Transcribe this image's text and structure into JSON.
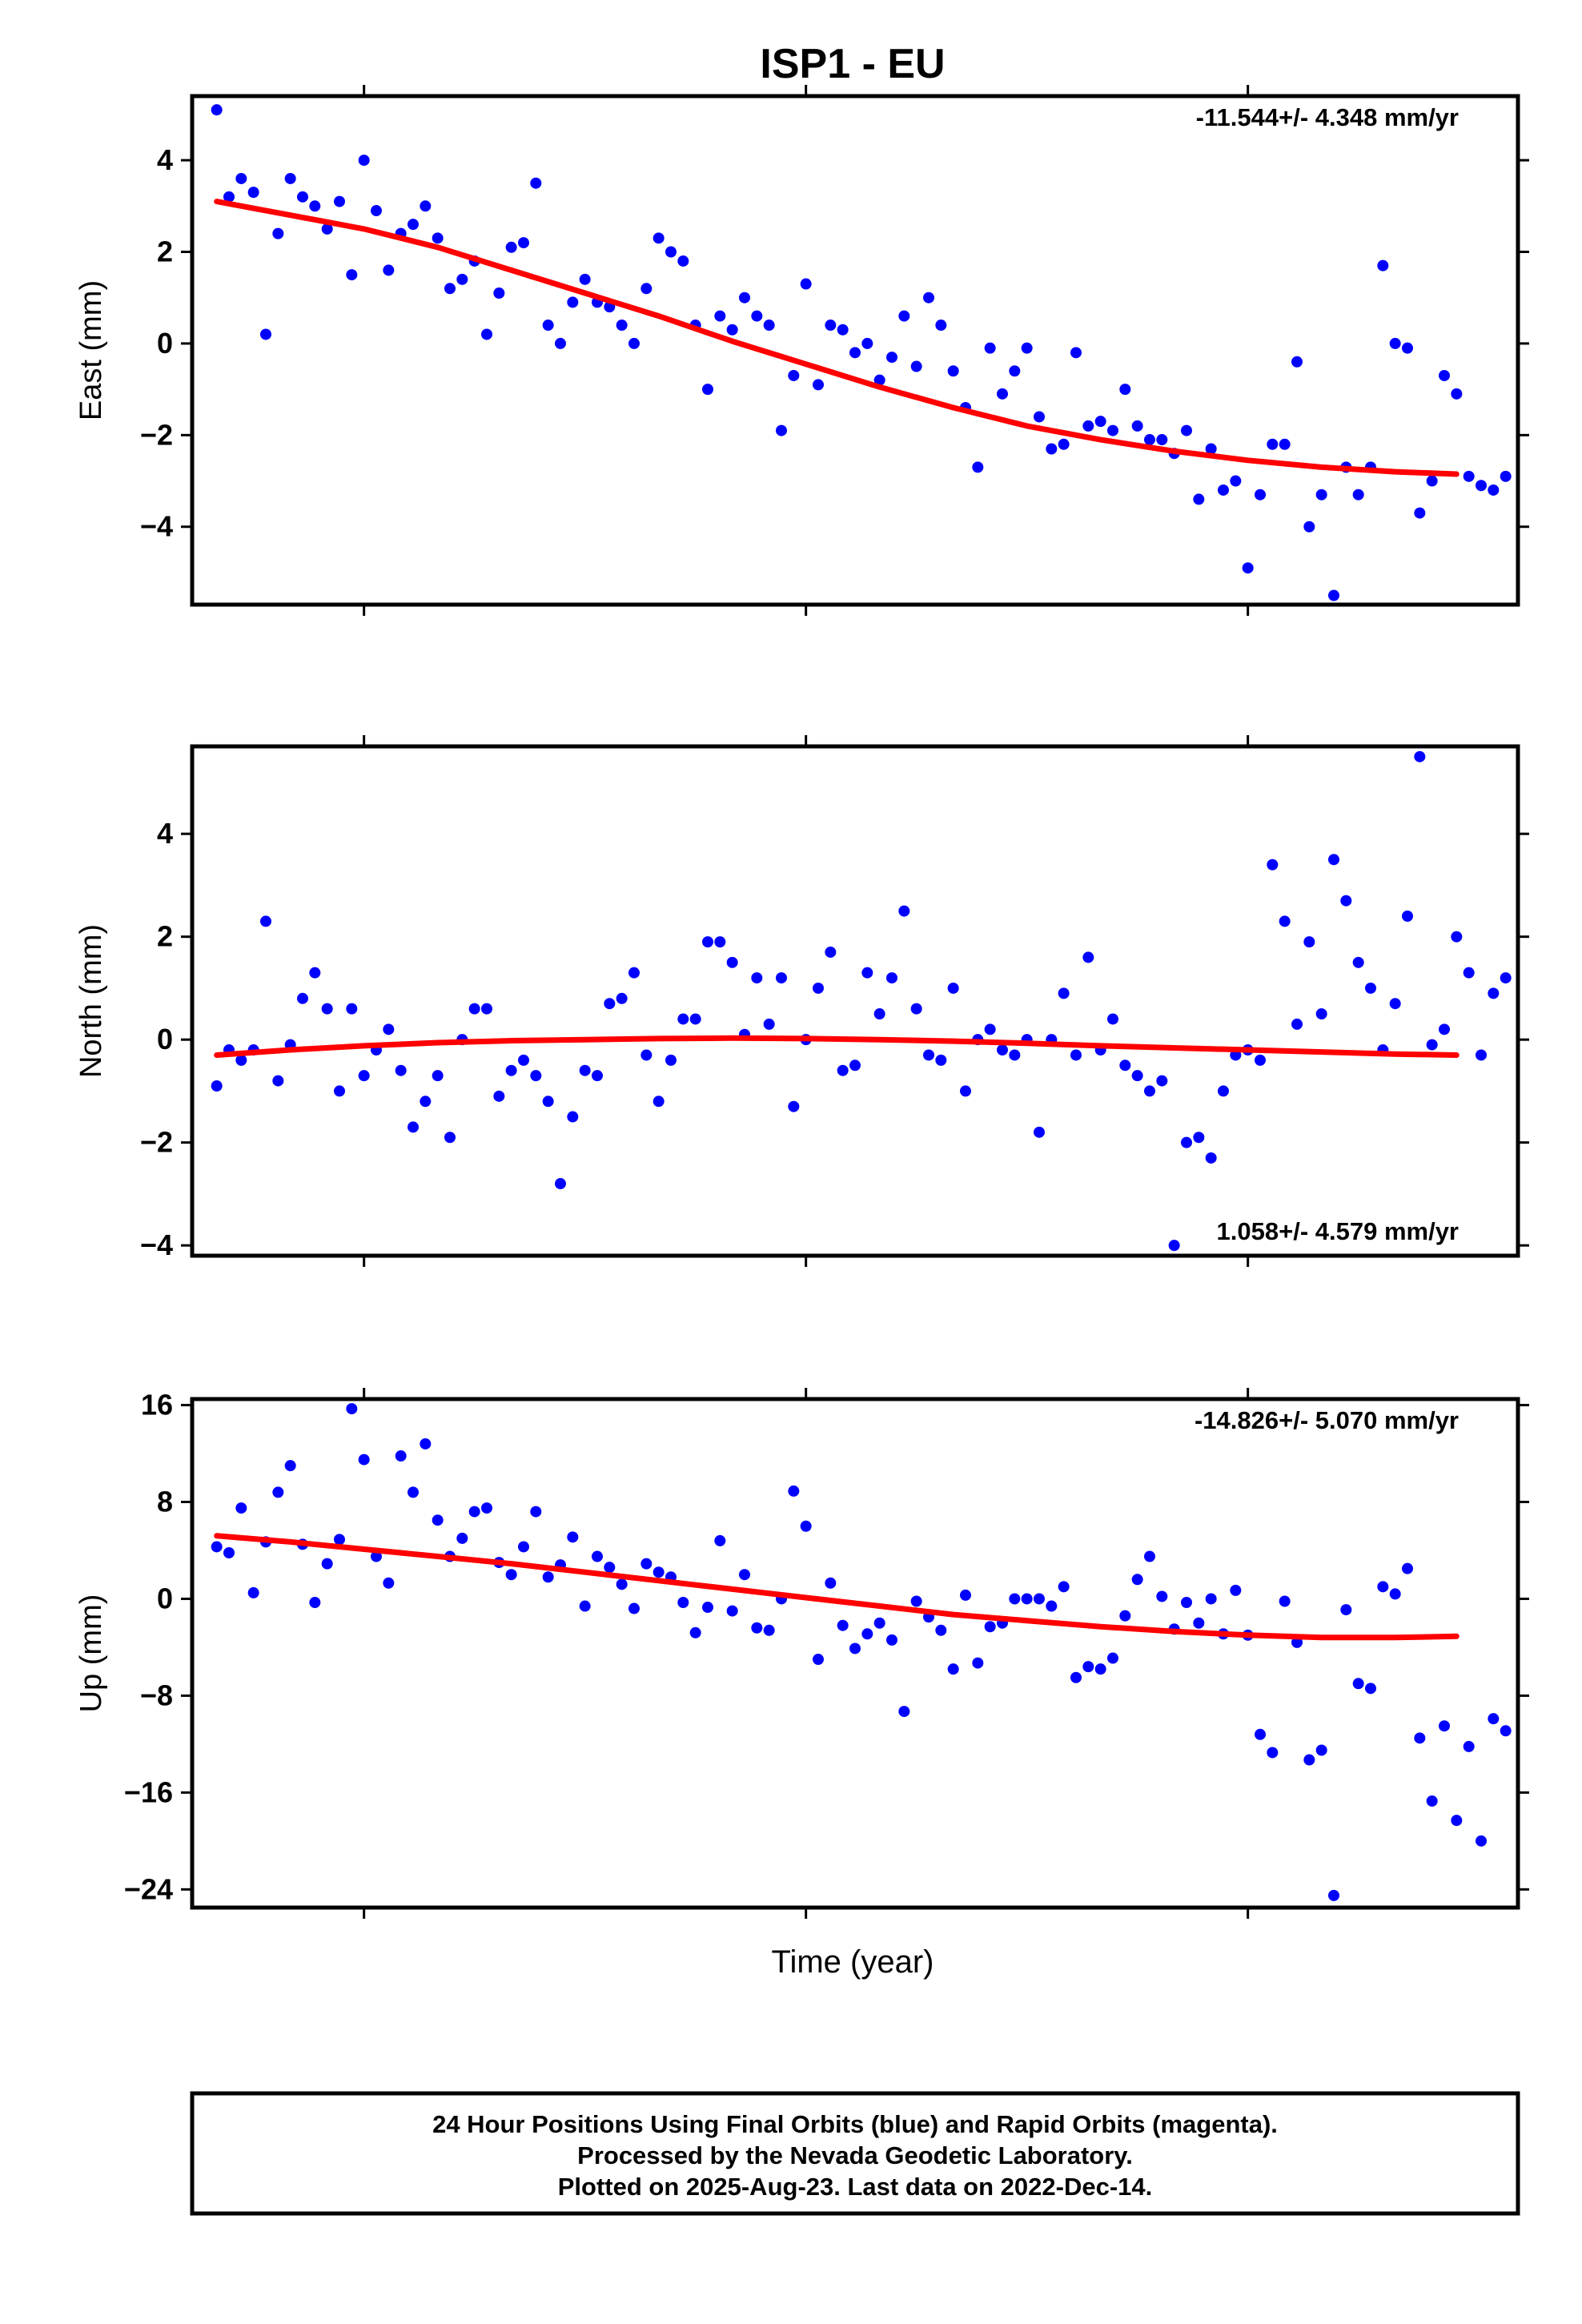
{
  "title": "ISP1 - EU",
  "xlabel": "Time (year)",
  "colors": {
    "data": "#0000ff",
    "fit": "#ff0000",
    "frame": "#000000"
  },
  "footer": {
    "line1": "24 Hour Positions Using Final Orbits (blue) and Rapid Orbits (magenta).",
    "line2": "Processed by the Nevada Geodetic Laboratory.",
    "line3": "Plotted on 2025-Aug-23. Last data on 2022-Dec-14."
  },
  "chart_data": [
    {
      "type": "scatter",
      "ylabel": "East (mm)",
      "rate_label": "-11.544+/- 4.348 mm/yr",
      "rate_position": "top-right",
      "ylim": [
        -5.7,
        5.4
      ],
      "yticks": [
        4,
        2,
        0,
        -2,
        -4
      ],
      "ytick_labels": [
        "4",
        "2",
        "0",
        "−2",
        "−4"
      ],
      "xlim": [
        0,
        108
      ],
      "x_tick_marks": [
        14,
        50,
        86
      ],
      "series": [
        {
          "kind": "points",
          "x": [
            2,
            3,
            4,
            5,
            6,
            7,
            8,
            9,
            10,
            11,
            12,
            13,
            14,
            15,
            16,
            17,
            18,
            19,
            20,
            21,
            22,
            23,
            24,
            25,
            26,
            27,
            28,
            29,
            30,
            31,
            32,
            33,
            34,
            35,
            36,
            37,
            38,
            39,
            40,
            41,
            42,
            43,
            44,
            45,
            46,
            47,
            48,
            49,
            50,
            51,
            52,
            53,
            54,
            55,
            56,
            57,
            58,
            59,
            60,
            61,
            62,
            63,
            64,
            65,
            66,
            67,
            68,
            69,
            70,
            71,
            72,
            73,
            74,
            75,
            76,
            77,
            78,
            79,
            80,
            81,
            82,
            83,
            84,
            85,
            86,
            87,
            88,
            89,
            90,
            91,
            92,
            93,
            94,
            95,
            96,
            97,
            98,
            99,
            100,
            101,
            102,
            103,
            104,
            105,
            106,
            107
          ],
          "y": [
            5.1,
            3.2,
            3.6,
            3.3,
            0.2,
            2.4,
            3.6,
            3.2,
            3.0,
            2.5,
            3.1,
            1.5,
            4.0,
            2.9,
            1.6,
            2.4,
            2.6,
            3.0,
            2.3,
            1.2,
            1.4,
            1.8,
            0.2,
            1.1,
            2.1,
            2.2,
            3.5,
            0.4,
            0.0,
            0.9,
            1.4,
            0.9,
            0.8,
            0.4,
            0.0,
            1.2,
            2.3,
            2.0,
            1.8,
            0.4,
            -1.0,
            0.6,
            0.3,
            1.0,
            0.6,
            0.4,
            -1.9,
            -0.7,
            1.3,
            -0.9,
            0.4,
            0.3,
            -0.2,
            0.0,
            -0.8,
            -0.3,
            0.6,
            -0.5,
            1.0,
            0.4,
            -0.6,
            -1.4,
            -2.7,
            -0.1,
            -1.1,
            -0.6,
            -0.1,
            -1.6,
            -2.3,
            -2.2,
            -0.2,
            -1.8,
            -1.7,
            -1.9,
            -1.0,
            -1.8,
            -2.1,
            -2.1,
            -2.4,
            -1.9,
            -3.4,
            -2.3,
            -3.2,
            -3.0,
            -4.9,
            -3.3,
            -2.2,
            -2.2,
            -0.4,
            -4.0,
            -3.3,
            -5.5,
            -2.7,
            -3.3,
            -2.7,
            1.7,
            0.0,
            -0.1,
            -3.7,
            -3.0,
            -0.7,
            -1.1,
            -2.9,
            -3.1,
            -3.2,
            -2.9
          ]
        },
        {
          "kind": "fit",
          "x": [
            2,
            8,
            14,
            20,
            26,
            32,
            38,
            44,
            50,
            56,
            62,
            68,
            74,
            80,
            86,
            92,
            98,
            103
          ],
          "y": [
            3.1,
            2.8,
            2.5,
            2.1,
            1.6,
            1.1,
            0.6,
            0.05,
            -0.45,
            -0.95,
            -1.4,
            -1.8,
            -2.1,
            -2.35,
            -2.55,
            -2.7,
            -2.8,
            -2.85
          ]
        }
      ]
    },
    {
      "type": "scatter",
      "ylabel": "North (mm)",
      "rate_label": "1.058+/- 4.579 mm/yr",
      "rate_position": "bottom-right",
      "ylim": [
        -4.2,
        5.7
      ],
      "yticks": [
        4,
        2,
        0,
        -2,
        -4
      ],
      "ytick_labels": [
        "4",
        "2",
        "0",
        "−2",
        "−4"
      ],
      "xlim": [
        0,
        108
      ],
      "x_tick_marks": [
        14,
        50,
        86
      ],
      "series": [
        {
          "kind": "points",
          "x": [
            2,
            3,
            4,
            5,
            6,
            7,
            8,
            9,
            10,
            11,
            12,
            13,
            14,
            15,
            16,
            17,
            18,
            19,
            20,
            21,
            22,
            23,
            24,
            25,
            26,
            27,
            28,
            29,
            30,
            31,
            32,
            33,
            34,
            35,
            36,
            37,
            38,
            39,
            40,
            41,
            42,
            43,
            44,
            45,
            46,
            47,
            48,
            49,
            50,
            51,
            52,
            53,
            54,
            55,
            56,
            57,
            58,
            59,
            60,
            61,
            62,
            63,
            64,
            65,
            66,
            67,
            68,
            69,
            70,
            71,
            72,
            73,
            74,
            75,
            76,
            77,
            78,
            79,
            80,
            81,
            82,
            83,
            84,
            85,
            86,
            87,
            88,
            89,
            90,
            91,
            92,
            93,
            94,
            95,
            96,
            97,
            98,
            99,
            100,
            101,
            102,
            103,
            104,
            105,
            106,
            107
          ],
          "y": [
            -0.9,
            -0.2,
            -0.4,
            -0.2,
            2.3,
            -0.8,
            -0.1,
            0.8,
            1.3,
            0.6,
            -1.0,
            0.6,
            -0.7,
            -0.2,
            0.2,
            -0.6,
            -1.7,
            -1.2,
            -0.7,
            -1.9,
            0.0,
            0.6,
            0.6,
            -1.1,
            -0.6,
            -0.4,
            -0.7,
            -1.2,
            -2.8,
            -1.5,
            -0.6,
            -0.7,
            0.7,
            0.8,
            1.3,
            -0.3,
            -1.2,
            -0.4,
            0.4,
            0.4,
            1.9,
            1.9,
            1.5,
            0.1,
            1.2,
            0.3,
            1.2,
            -1.3,
            0.0,
            1.0,
            1.7,
            -0.6,
            -0.5,
            1.3,
            0.5,
            1.2,
            2.5,
            0.6,
            -0.3,
            -0.4,
            1.0,
            -1.0,
            0.0,
            0.2,
            -0.2,
            -0.3,
            0.0,
            -1.8,
            0.0,
            0.9,
            -0.3,
            1.6,
            -0.2,
            0.4,
            -0.5,
            -0.7,
            -1.0,
            -0.8,
            -4.0,
            -2.0,
            -1.9,
            -2.3,
            -1.0,
            -0.3,
            -0.2,
            -0.4,
            3.4,
            2.3,
            0.3,
            1.9,
            0.5,
            3.5,
            2.7,
            1.5,
            1.0,
            -0.2,
            0.7,
            2.4,
            5.5,
            -0.1,
            0.2,
            2.0,
            1.3,
            -0.3,
            0.9,
            1.2
          ]
        },
        {
          "kind": "fit",
          "x": [
            2,
            8,
            14,
            20,
            26,
            32,
            38,
            44,
            50,
            56,
            62,
            68,
            74,
            80,
            86,
            92,
            98,
            103
          ],
          "y": [
            -0.3,
            -0.2,
            -0.12,
            -0.06,
            -0.02,
            0.0,
            0.02,
            0.03,
            0.02,
            0.0,
            -0.03,
            -0.07,
            -0.12,
            -0.16,
            -0.2,
            -0.24,
            -0.28,
            -0.3
          ]
        }
      ]
    },
    {
      "type": "scatter",
      "ylabel": "Up (mm)",
      "rate_label": "-14.826+/- 5.070 mm/yr",
      "rate_position": "top-right",
      "ylim": [
        -25.5,
        16.5
      ],
      "yticks": [
        16,
        8,
        0,
        -8,
        -16,
        -24
      ],
      "ytick_labels": [
        "16",
        "8",
        "0",
        "−8",
        "−16",
        "−24"
      ],
      "xlim": [
        0,
        108
      ],
      "x_tick_marks": [
        14,
        50,
        86
      ],
      "series": [
        {
          "kind": "points",
          "x": [
            2,
            3,
            4,
            5,
            6,
            7,
            8,
            9,
            10,
            11,
            12,
            13,
            14,
            15,
            16,
            17,
            18,
            19,
            20,
            21,
            22,
            23,
            24,
            25,
            26,
            27,
            28,
            29,
            30,
            31,
            32,
            33,
            34,
            35,
            36,
            37,
            38,
            39,
            40,
            41,
            42,
            43,
            44,
            45,
            46,
            47,
            48,
            49,
            50,
            51,
            52,
            53,
            54,
            55,
            56,
            57,
            58,
            59,
            60,
            61,
            62,
            63,
            64,
            65,
            66,
            67,
            68,
            69,
            70,
            71,
            72,
            73,
            74,
            75,
            76,
            77,
            78,
            79,
            80,
            81,
            82,
            83,
            84,
            85,
            86,
            87,
            88,
            89,
            90,
            91,
            92,
            93,
            94,
            95,
            96,
            97,
            98,
            99,
            100,
            101,
            102,
            103,
            104,
            105,
            106,
            107
          ],
          "y": [
            4.3,
            3.8,
            7.5,
            0.5,
            4.7,
            8.8,
            11.0,
            4.5,
            -0.3,
            2.9,
            4.9,
            15.7,
            11.5,
            3.5,
            1.3,
            11.8,
            8.8,
            12.8,
            6.5,
            3.5,
            5.0,
            7.2,
            7.5,
            3.0,
            2.0,
            4.3,
            7.2,
            1.8,
            2.8,
            5.1,
            -0.6,
            3.5,
            2.6,
            1.2,
            -0.8,
            2.9,
            2.2,
            1.8,
            -0.3,
            -2.8,
            -0.7,
            4.8,
            -1.0,
            2.0,
            -2.4,
            -2.6,
            0.0,
            8.9,
            6.0,
            -5.0,
            1.3,
            -2.2,
            -4.1,
            -2.9,
            -2.0,
            -3.4,
            -9.3,
            -0.2,
            -1.5,
            -2.6,
            -5.8,
            0.3,
            -5.3,
            -2.3,
            -2.0,
            0.0,
            0.0,
            0.0,
            -0.6,
            1.0,
            -6.5,
            -5.6,
            -5.8,
            -4.9,
            -1.4,
            1.6,
            3.5,
            0.2,
            -2.5,
            -0.3,
            -2.0,
            0.0,
            -2.9,
            0.7,
            -3.0,
            -11.2,
            -12.7,
            -0.2,
            -3.6,
            -13.3,
            -12.5,
            -24.5,
            -0.9,
            -7.0,
            -7.4,
            1.0,
            0.4,
            2.5,
            -11.5,
            -16.7,
            -10.5,
            -18.3,
            -12.2,
            -20.0,
            -9.9,
            -10.9
          ]
        },
        {
          "kind": "fit",
          "x": [
            2,
            8,
            14,
            20,
            26,
            32,
            38,
            44,
            50,
            56,
            62,
            68,
            74,
            80,
            86,
            92,
            98,
            103
          ],
          "y": [
            5.2,
            4.7,
            4.1,
            3.5,
            2.9,
            2.2,
            1.5,
            0.8,
            0.1,
            -0.6,
            -1.3,
            -1.8,
            -2.3,
            -2.7,
            -3.0,
            -3.2,
            -3.2,
            -3.1
          ]
        }
      ]
    }
  ]
}
